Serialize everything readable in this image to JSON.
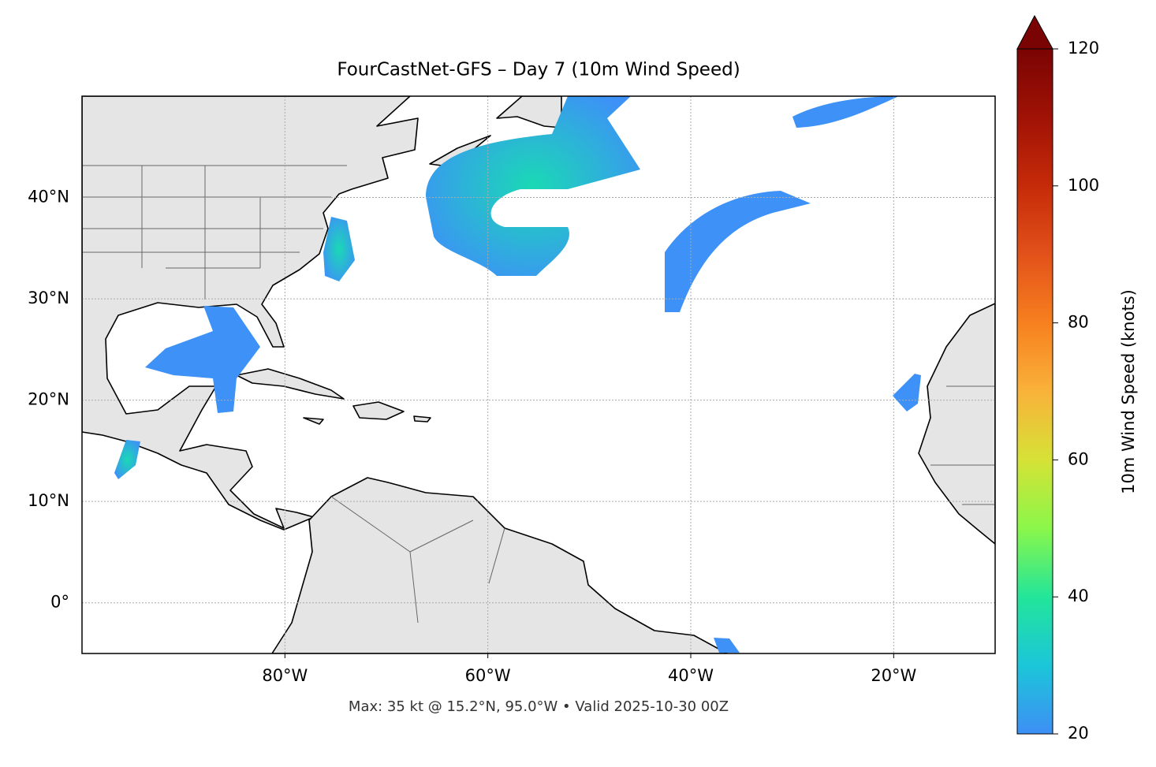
{
  "map": {
    "title": "FourCastNet-GFS – Day 7 (10m Wind Speed)",
    "footer": "Max: 35 kt @ 15.2°N, 95.0°W • Valid 2025-10-30 00Z",
    "xlim": [
      -100,
      -10
    ],
    "ylim": [
      -5,
      50
    ],
    "xticks": [
      {
        "value": -80,
        "label": "80°W"
      },
      {
        "value": -60,
        "label": "60°W"
      },
      {
        "value": -40,
        "label": "40°W"
      },
      {
        "value": -20,
        "label": "20°W"
      }
    ],
    "yticks": [
      {
        "value": 0,
        "label": "0°"
      },
      {
        "value": 10,
        "label": "10°N"
      },
      {
        "value": 20,
        "label": "20°N"
      },
      {
        "value": 30,
        "label": "30°N"
      },
      {
        "value": 40,
        "label": "40°N"
      }
    ],
    "grid": true,
    "colorbar": {
      "label": "10m Wind Speed (knots)",
      "lim": [
        20,
        120
      ],
      "ticks": [
        20,
        40,
        60,
        80,
        100,
        120
      ]
    }
  }
}
